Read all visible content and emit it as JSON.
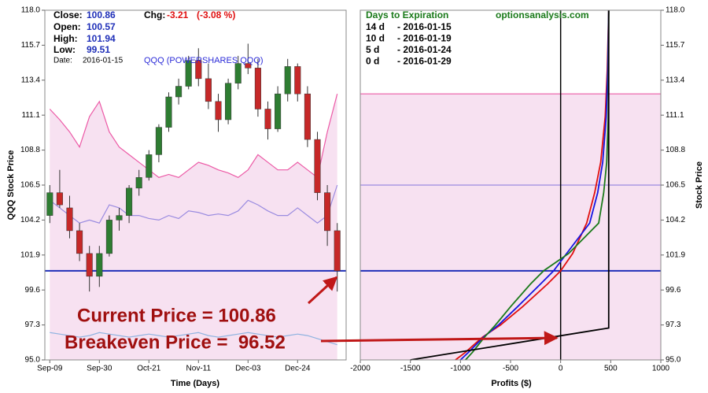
{
  "chart_data": [
    {
      "type": "candlestick",
      "stats": [
        {
          "label": "Close:",
          "value": "100.86"
        },
        {
          "label": "Open:",
          "value": "100.57"
        },
        {
          "label": "High:",
          "value": "101.94"
        },
        {
          "label": "Low:",
          "value": "99.51"
        }
      ],
      "change": {
        "label": "Chg:",
        "value": "-3.21",
        "percent": "(-3.08 %)"
      },
      "date": {
        "label": "Date:",
        "value": "2016-01-15"
      },
      "symbol": "QQQ (POWERSHARES QQQ)",
      "ylabel": "QQQ Stock Price",
      "xlabel": "Time (Days)",
      "annotations": [
        "Current Price = 100.86",
        "Breakeven Price =  96.52"
      ],
      "categories": [
        "Sep-09",
        null,
        null,
        null,
        null,
        "Sep-30",
        null,
        null,
        null,
        null,
        "Oct-21",
        null,
        null,
        null,
        null,
        "Nov-11",
        null,
        null,
        null,
        null,
        "Dec-03",
        null,
        null,
        null,
        null,
        "Dec-24",
        null,
        null,
        null,
        null
      ],
      "open": [
        104.5,
        106,
        105,
        103.5,
        102,
        100.5,
        102,
        104.2,
        104.5,
        106.3,
        107,
        108.5,
        110.3,
        112.3,
        113,
        114.7,
        113.5,
        112,
        110.8,
        113.2,
        114.5,
        114.2,
        111.5,
        110.2,
        112.5,
        114.3,
        112.5,
        109.5,
        106,
        103.5
      ],
      "high": [
        106.5,
        107.5,
        105.8,
        104,
        102.5,
        102.5,
        104.5,
        105,
        106.5,
        107.5,
        108.8,
        110.5,
        112.6,
        113.5,
        115,
        115.5,
        114.5,
        112.5,
        113.5,
        115,
        115.8,
        114.8,
        112,
        113,
        114.8,
        114.5,
        113,
        110,
        106.5,
        104
      ],
      "low": [
        104,
        105,
        103,
        101.5,
        99.5,
        99.8,
        101.8,
        103.5,
        104,
        105.8,
        106.8,
        108,
        110,
        111.8,
        112.8,
        113,
        111.5,
        110,
        110.5,
        112.8,
        113.8,
        111,
        109.5,
        110,
        112,
        112,
        109,
        105.5,
        102.5,
        99.5
      ],
      "close": [
        106,
        105.2,
        103.5,
        102,
        100.5,
        102,
        104.2,
        104.5,
        106.3,
        107,
        108.5,
        110.3,
        112.3,
        113,
        114.7,
        113.5,
        112,
        110.8,
        113.2,
        114.5,
        114.2,
        111.5,
        110.2,
        112.5,
        114.3,
        112.5,
        109.5,
        106,
        103.5,
        100.86
      ],
      "up_color": "#2e7d32",
      "down_color": "#c62828",
      "series": [
        {
          "color": "#ec5aa6",
          "fill": "#f7e1f1",
          "values": [
            111.5,
            110.8,
            110,
            109,
            111,
            112,
            110,
            109,
            108.5,
            108,
            107.5,
            107,
            107.2,
            107,
            107.5,
            108,
            107.8,
            107.5,
            107.3,
            107,
            107.5,
            108.5,
            108,
            107.5,
            107.5,
            108,
            107.5,
            107,
            110,
            112.5
          ]
        },
        {
          "color": "#9a8be0",
          "values": [
            105.5,
            105,
            104.5,
            104,
            104.2,
            104,
            105.2,
            105,
            104.5,
            104.5,
            104.3,
            104.2,
            104.5,
            104.3,
            104.8,
            104.7,
            104.5,
            104.6,
            104.5,
            104.8,
            105.5,
            105.2,
            104.8,
            104.5,
            104.5,
            105,
            104.5,
            104,
            104.5,
            106.5
          ]
        },
        {
          "color": "#8fb3e0",
          "values": [
            96.8,
            96.7,
            96.6,
            96.5,
            96.6,
            96.8,
            96.7,
            96.6,
            96.5,
            96.6,
            96.7,
            96.6,
            96.5,
            96.6,
            96.7,
            96.8,
            96.6,
            96.5,
            96.6,
            96.7,
            96.8,
            96.7,
            96.6,
            96.5,
            96.6,
            96.7,
            96.6,
            96.4,
            96.2,
            96.0
          ]
        }
      ],
      "reference_lines": [
        {
          "value": 100.86,
          "color": "#1f2fb8"
        }
      ],
      "ylim": [
        95,
        118
      ],
      "yticks": [
        {
          "value": 95,
          "label": "95.0"
        },
        97.3,
        99.6,
        101.9,
        104.2,
        106.5,
        108.8,
        111.1,
        113.4,
        115.7,
        {
          "value": 118,
          "label": "118.0"
        }
      ]
    },
    {
      "type": "line",
      "legend_title": "Days to Expiration",
      "source": "optionsanalysis.com",
      "ylabel": "Stock Price",
      "xlabel": "Profits ($)",
      "series": [
        {
          "name": "14 d",
          "expiry": "- 2016-01-15",
          "color": "#e01010",
          "y": [
            95,
            95.5,
            96.5,
            97.3,
            98.5,
            100,
            100.86,
            102,
            104,
            106,
            108,
            111,
            114,
            118
          ],
          "x": [
            -1050,
            -950,
            -780,
            -600,
            -380,
            -130,
            0,
            120,
            260,
            340,
            400,
            445,
            465,
            480
          ]
        },
        {
          "name": "10 d",
          "expiry": "- 2016-01-19",
          "color": "#1515e0",
          "y": [
            95,
            95.5,
            96.5,
            97.3,
            98.5,
            100,
            100.86,
            102,
            104,
            106,
            108,
            111,
            114,
            118
          ],
          "x": [
            -1000,
            -920,
            -770,
            -620,
            -430,
            -200,
            -70,
            60,
            290,
            370,
            420,
            455,
            470,
            480
          ]
        },
        {
          "name": "5 d",
          "expiry": "- 2016-01-24",
          "color": "#1a7a1a",
          "y": [
            95,
            95.5,
            96.5,
            97.3,
            98.5,
            100,
            100.86,
            102,
            104,
            106,
            108,
            111,
            114,
            118
          ],
          "x": [
            -950,
            -880,
            -760,
            -650,
            -500,
            -300,
            -170,
            80,
            380,
            430,
            460,
            475,
            478,
            480
          ]
        },
        {
          "name": "0 d",
          "expiry": "- 2016-01-29",
          "color": "#000000",
          "y": [
            95,
            97.1,
            118
          ],
          "x": [
            -1500,
            480,
            480
          ]
        }
      ],
      "bands": [
        {
          "from": 95,
          "to": 112.5,
          "color": "#f7e1f1",
          "edge": "#ec5aa6"
        }
      ],
      "reference_lines": [
        {
          "value": 106.5,
          "color": "#9a8be0"
        },
        {
          "value": 100.86,
          "color": "#1f2fb8"
        }
      ],
      "xrefs": [
        {
          "value": 0,
          "color": "#000000"
        }
      ],
      "xlim": [
        -2000,
        1000
      ],
      "xticks": [
        -2000,
        -1500,
        -1000,
        -500,
        0,
        500,
        1000
      ],
      "ylim": [
        95,
        118
      ],
      "yticks": [
        {
          "value": 95,
          "label": "95.0"
        },
        97.3,
        99.6,
        101.9,
        104.2,
        106.5,
        108.8,
        111.1,
        113.4,
        115.7,
        {
          "value": 118,
          "label": "118.0"
        }
      ]
    }
  ]
}
